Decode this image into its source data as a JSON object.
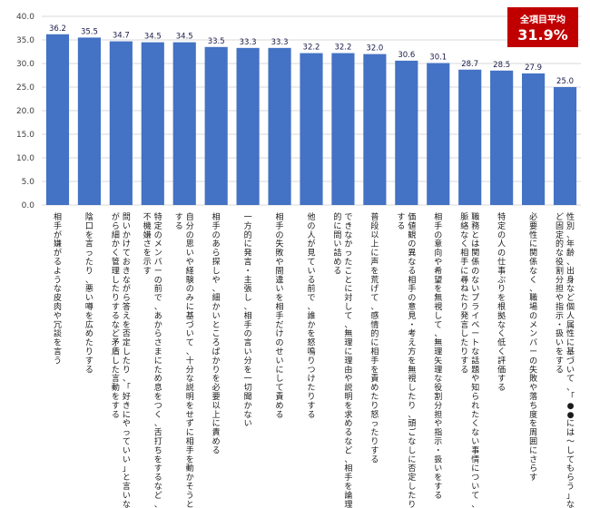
{
  "chart_data": {
    "type": "bar",
    "categories": [
      "相手が嫌がるような皮肉や冗談を言う",
      "陰口を言ったり、悪い噂を広めたりする",
      "問いかけておきながら答えを否定したり、「好きにやっていい」と言いながら細かく管理したりするなど矛盾した言動をする",
      "特定のメンバーの前で、あからさまにため息をつく、舌打ちをするなど、不機嫌さを示す",
      "自分の思いや経験のみに基づいて、十分な説明をせずに相手を動かそうとする",
      "相手のあら探しや、細かいところばかりを必要以上に責める",
      "一方的に発言・主張し、相手の言い分を一切聞かない",
      "相手の失敗や間違いを相手だけのせいにして責める",
      "他の人が見ている前で、誰かを怒鳴りつけたりする",
      "できなかったことに対して、無理に理由や説明を求めるなど、相手を論理的に問い詰める",
      "普段以上に声を荒げて、感情的に相手を責めたり怒ったりする",
      "価値観の異なる相手の意見・考え方を無視したり、頭ごなしに否定したりする",
      "相手の意向や希望を無視して、無理矢理な役割分担や指示・扱いをする",
      "職務とは関係のないプライベートな話題や知られたくない事情について、脈絡なく相手に尋ねたり発言したりする",
      "特定の人の仕事ぶりを根拠なく低く評価する",
      "必要性に関係なく、職場のメンバーの失敗や落ち度を周囲にさらす",
      "性別、年齢、出身など個人属性に基づいて、「●●には～してもらう」など固定的な役割分担や指示・扱いをする"
    ],
    "values": [
      36.2,
      35.5,
      34.7,
      34.5,
      34.5,
      33.5,
      33.3,
      33.3,
      32.2,
      32.2,
      32.0,
      30.6,
      30.1,
      28.7,
      28.5,
      27.9,
      25.0
    ],
    "value_labels": [
      "36.2",
      "35.5",
      "34.7",
      "34.5",
      "34.5",
      "33.5",
      "33.3",
      "33.3",
      "32.2",
      "32.2",
      "32.0",
      "30.6",
      "30.1",
      "28.7",
      "28.5",
      "27.9",
      "25.0"
    ],
    "y_ticks": [
      "0.0",
      "5.0",
      "10.0",
      "15.0",
      "20.0",
      "25.0",
      "30.0",
      "35.0",
      "40.0"
    ],
    "ylim": [
      0,
      40
    ],
    "grid": true,
    "bar_color": "#4472c4",
    "title": "",
    "xlabel": "",
    "ylabel": ""
  },
  "annotation": {
    "title": "全項目平均",
    "value": "31.9%",
    "color": "#c00000"
  }
}
